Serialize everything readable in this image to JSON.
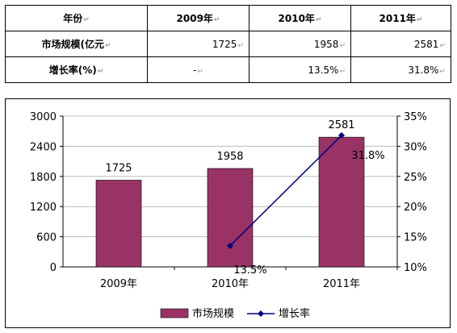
{
  "table": {
    "header": [
      "年份",
      "2009年",
      "2010年",
      "2011年"
    ],
    "rows": [
      {
        "label": "市场规模(亿元",
        "values": [
          "1725",
          "1958",
          "2581"
        ]
      },
      {
        "label": "增长率(%)",
        "values": [
          "-",
          "13.5%",
          "31.8%"
        ]
      }
    ]
  },
  "chart_data": {
    "type": "bar",
    "categories": [
      "2009年",
      "2010年",
      "2011年"
    ],
    "series": [
      {
        "name": "市场规模",
        "type": "bar",
        "axis": "left",
        "values": [
          1725,
          1958,
          2581
        ],
        "labels": [
          "1725",
          "1958",
          "2581"
        ],
        "color": "#993366"
      },
      {
        "name": "增长率",
        "type": "line",
        "axis": "right",
        "values": [
          null,
          13.5,
          31.8
        ],
        "labels": [
          "",
          "13.5%",
          "31.8%"
        ],
        "color": "#000080"
      }
    ],
    "ylim_left": [
      0,
      3000
    ],
    "yticks_left": [
      "0",
      "600",
      "1200",
      "1800",
      "2400",
      "3000"
    ],
    "ylim_right": [
      10,
      35
    ],
    "yticks_right": [
      "10%",
      "15%",
      "20%",
      "25%",
      "30%",
      "35%"
    ],
    "grid": true,
    "legend_position": "bottom"
  }
}
